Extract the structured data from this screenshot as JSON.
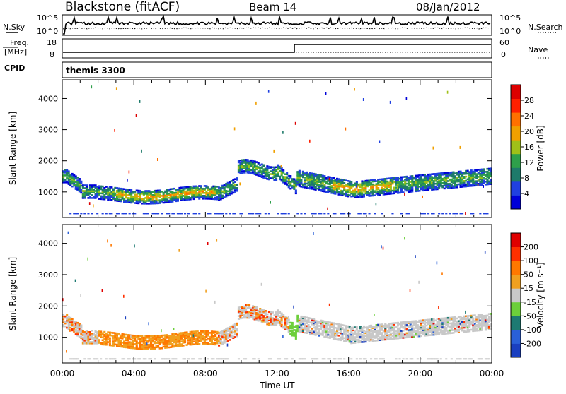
{
  "header": {
    "station": "Blackstone (fitACF)",
    "beam": "Beam 14",
    "date": "08/Jan/2012"
  },
  "status_panels": {
    "nsky_label": "N.Sky",
    "nsearch_label": "N.Search",
    "nsky_ticks": [
      "10^5",
      "10^0"
    ],
    "freq_label_1": "Freq.",
    "freq_label_2": "[MHz]",
    "freq_ticks": [
      "18",
      "8"
    ],
    "nave_label": "Nave",
    "nave_ticks": [
      "60",
      "0"
    ],
    "cpid_label": "CPID",
    "cpid_value": "themis 3300"
  },
  "chart_data": [
    {
      "type": "heatmap",
      "name": "power",
      "ylabel": "Slant Range [km]",
      "xlabel": "",
      "x_ticks": [
        "00:00",
        "04:00",
        "08:00",
        "12:00",
        "16:00",
        "20:00",
        "00:00"
      ],
      "x_range_hours": [
        0,
        24
      ],
      "ylim": [
        180,
        4600
      ],
      "y_ticks": [
        1000,
        2000,
        3000,
        4000
      ],
      "colorbar_label": "Power [dB]",
      "colorbar_ticks": [
        "28",
        "24",
        "20",
        "16",
        "12",
        "8",
        "4"
      ],
      "colors": [
        "#0000d8",
        "#2040e0",
        "#1e7a6a",
        "#2e9f4a",
        "#a0c018",
        "#f0a000",
        "#ff7000",
        "#ff2000",
        "#dd0000"
      ]
    },
    {
      "type": "heatmap",
      "name": "velocity",
      "ylabel": "Slant Range [km]",
      "xlabel": "Time UT",
      "x_ticks": [
        "00:00",
        "04:00",
        "08:00",
        "12:00",
        "16:00",
        "20:00",
        "00:00"
      ],
      "x_range_hours": [
        0,
        24
      ],
      "ylim": [
        180,
        4600
      ],
      "y_ticks": [
        1000,
        2000,
        3000,
        4000
      ],
      "colorbar_label": "Velocity [m s⁻¹]",
      "colorbar_ticks": [
        "200",
        "100",
        "50",
        "15",
        "-15",
        "-50",
        "-100",
        "-200"
      ],
      "colors": [
        "#1a3fc0",
        "#2a60d8",
        "#1d7a72",
        "#6ccf3a",
        "#c8c8c8",
        "#f0a020",
        "#ff7800",
        "#ff3000",
        "#e00000"
      ]
    }
  ]
}
